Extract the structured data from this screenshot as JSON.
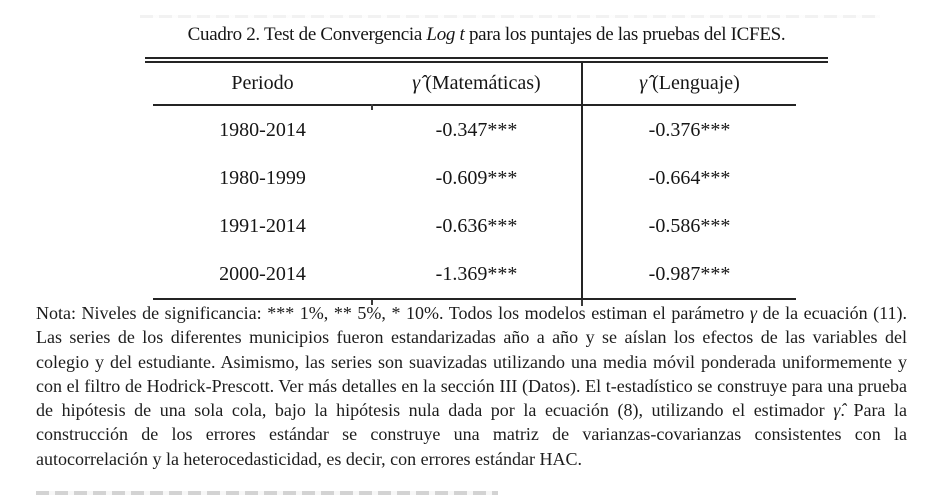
{
  "title": {
    "prefix": "Cuadro 2. Test de Convergencia ",
    "italic": "Log t",
    "suffix": " para los puntajes de las pruebas del ICFES."
  },
  "table": {
    "columns": [
      {
        "symbol": "",
        "label": "Periodo"
      },
      {
        "symbol": "γ̂",
        "label": "(Matemáticas)"
      },
      {
        "symbol": "γ̂",
        "label": "(Lenguaje)"
      }
    ],
    "rows": [
      {
        "cells": [
          "1980-2014",
          "-0.347***",
          "-0.376***"
        ]
      },
      {
        "cells": [
          "1980-1999",
          "-0.609***",
          "-0.664***"
        ]
      },
      {
        "cells": [
          "1991-2014",
          "-0.636***",
          "-0.586***"
        ]
      },
      {
        "cells": [
          "2000-2014",
          "-1.369***",
          "-0.987***"
        ]
      }
    ]
  },
  "note": {
    "segments": [
      "Nota: Niveles de significancia: *** 1%, ** 5%, * 10%. Todos los modelos estiman el parámetro ",
      "γ",
      " de la ecuación (11). Las series de los diferentes municipios fueron estandarizadas año a año y se aíslan los efectos de las variables del colegio y del estudiante. Asimismo, las series son suavizadas utilizando una media móvil ponderada uniformemente y con el filtro de Hodrick-Prescott. Ver más detalles en la sección III (Datos). El t-estadístico se construye para una prueba de hipótesis de una sola cola, bajo la hipótesis nula dada por la ecuación (8), utilizando el estimador ",
      "γ̂",
      ". Para la construcción de los errores estándar se construye una matriz de varianzas-covarianzas consistentes con la autocorrelación y la heterocedasticidad, es decir, con errores estándar HAC."
    ]
  }
}
